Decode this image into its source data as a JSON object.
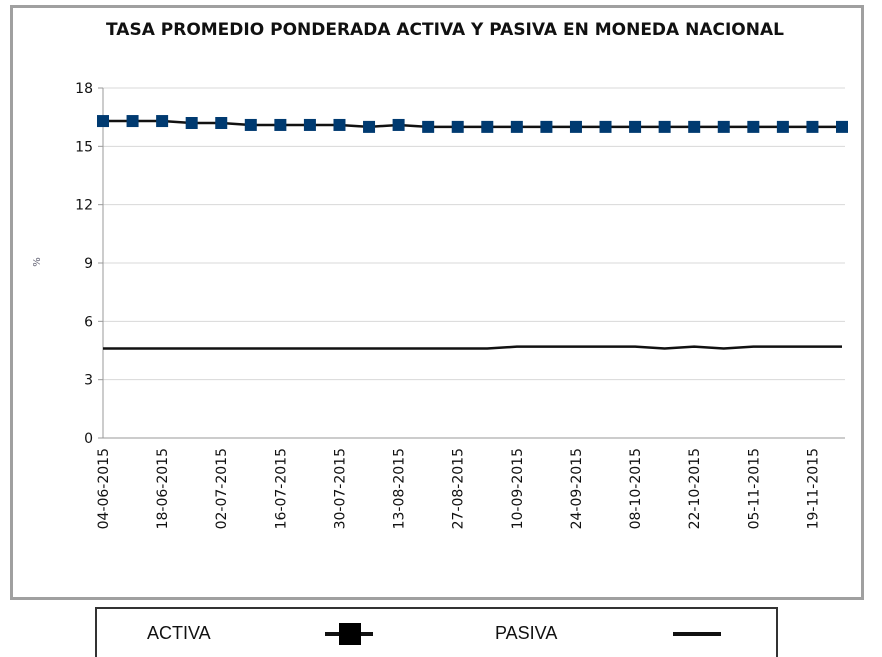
{
  "chart_data": {
    "type": "line",
    "title": "TASA PROMEDIO PONDERADA ACTIVA Y PASIVA EN MONEDA NACIONAL",
    "y_label": "%",
    "categories": [
      "04-06-2015",
      null,
      "18-06-2015",
      null,
      "02-07-2015",
      null,
      "16-07-2015",
      null,
      "30-07-2015",
      null,
      "13-08-2015",
      null,
      "27-08-2015",
      null,
      "10-09-2015",
      null,
      "24-09-2015",
      null,
      "08-10-2015",
      null,
      "22-10-2015",
      null,
      "05-11-2015",
      null,
      "19-11-2015",
      null
    ],
    "series": [
      {
        "name": "ACTIVA",
        "color": "#003a70",
        "line_color": "#111111",
        "marker": "square",
        "values": [
          16.3,
          16.3,
          16.3,
          16.2,
          16.2,
          16.1,
          16.1,
          16.1,
          16.1,
          16.0,
          16.1,
          16.0,
          16.0,
          16.0,
          16.0,
          16.0,
          16.0,
          16.0,
          16.0,
          16.0,
          16.0,
          16.0,
          16.0,
          16.0,
          16.0,
          16.0
        ]
      },
      {
        "name": "PASIVA",
        "color": "#111111",
        "line_color": "#111111",
        "marker": "none",
        "values": [
          4.6,
          4.6,
          4.6,
          4.6,
          4.6,
          4.6,
          4.6,
          4.6,
          4.6,
          4.6,
          4.6,
          4.6,
          4.6,
          4.6,
          4.7,
          4.7,
          4.7,
          4.7,
          4.7,
          4.6,
          4.7,
          4.6,
          4.7,
          4.7,
          4.7,
          4.7
        ]
      }
    ],
    "ylim": [
      0,
      18
    ],
    "yticks": [
      0,
      3,
      6,
      9,
      12,
      15,
      18
    ],
    "grid": true
  }
}
